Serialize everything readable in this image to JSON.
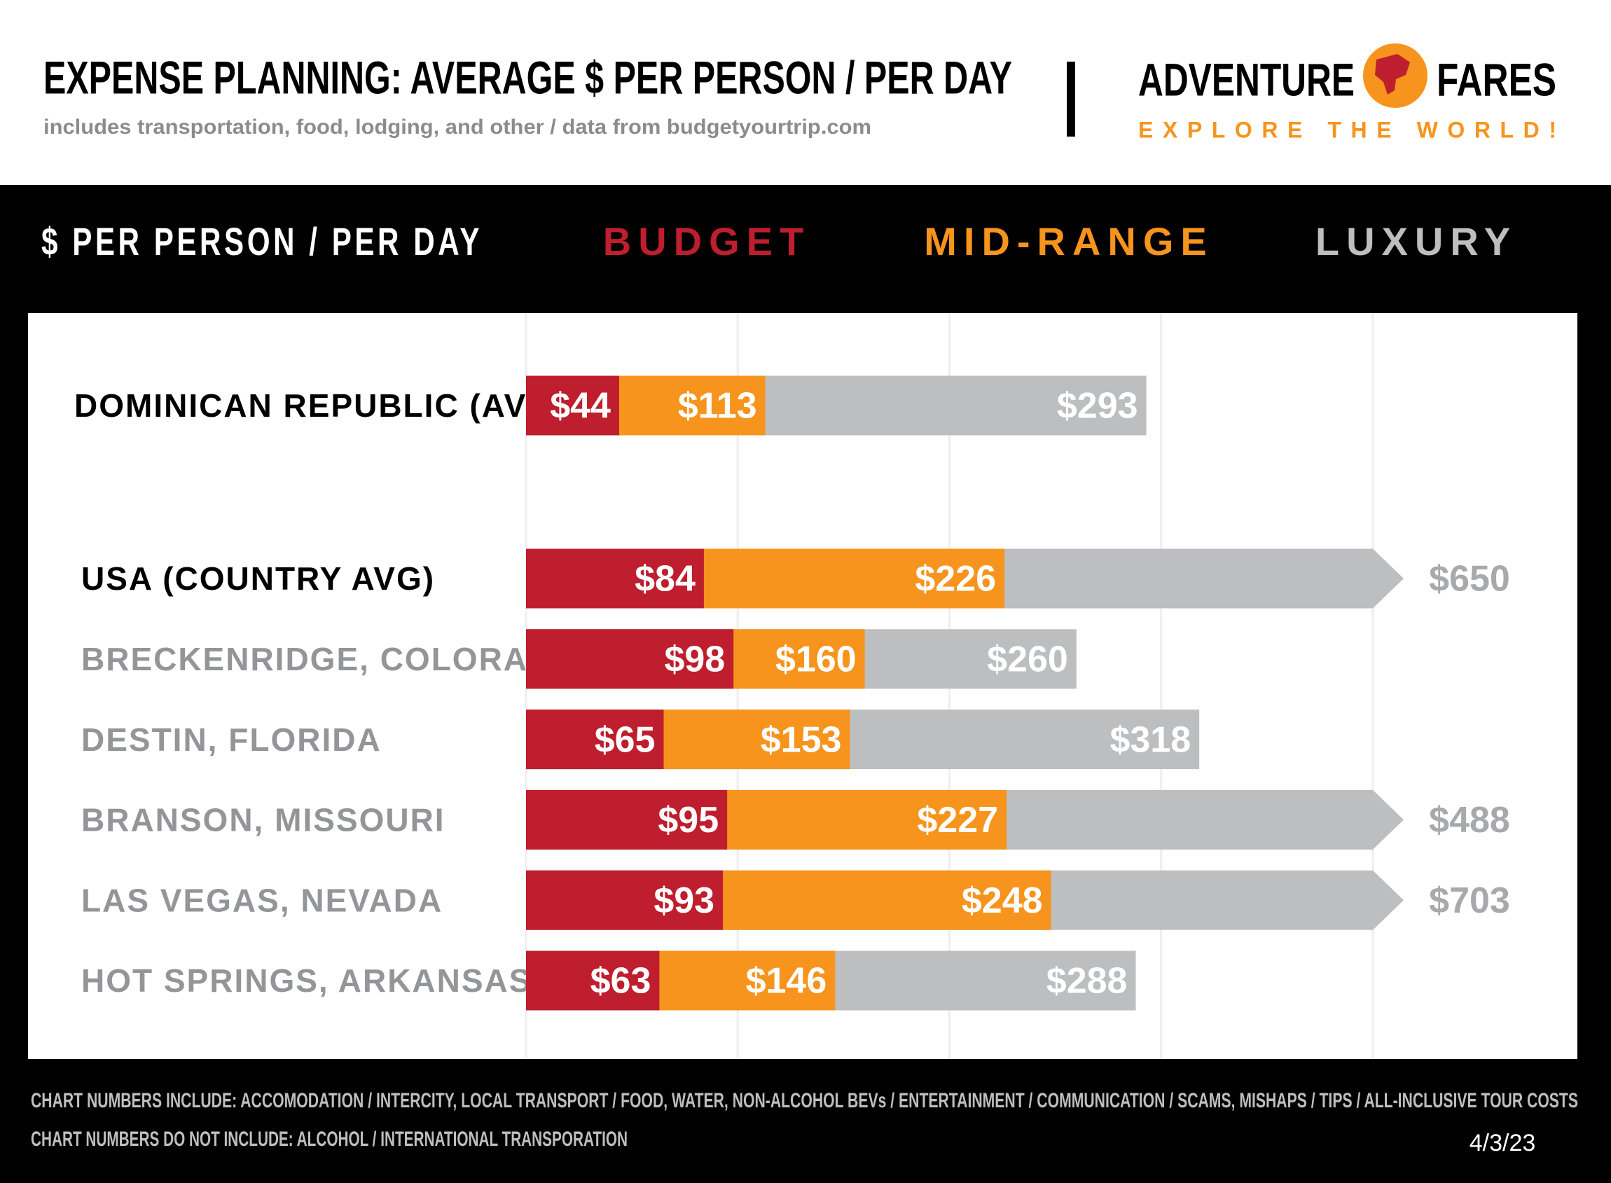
{
  "chart_data": {
    "type": "bar",
    "orientation": "horizontal",
    "title": "EXPENSE PLANNING: AVERAGE $ PER PERSON / PER DAY",
    "subtitle": "includes transportation, food, lodging, and other / data from budgetyourtrip.com",
    "brand": {
      "name_left": "ADVENTURE",
      "name_right": "FARES",
      "tagline": "EXPLORE THE WORLD!"
    },
    "x_label": "$ PER PERSON / PER DAY",
    "categories": [
      "DOMINICAN REPUBLIC (AVG)",
      "USA (COUNTRY AVG)",
      "BRECKENRIDGE, COLORADO",
      "DESTIN, FLORIDA",
      "BRANSON, MISSOURI",
      "LAS VEGAS, NEVADA",
      "HOT SPRINGS, ARKANSAS"
    ],
    "series": [
      {
        "name": "BUDGET",
        "color": "#be1e2d",
        "values": [
          44,
          84,
          98,
          65,
          95,
          93,
          63
        ],
        "value_labels": [
          "$44",
          "$84",
          "$98",
          "$65",
          "$95",
          "$93",
          "$63"
        ]
      },
      {
        "name": "MID-RANGE",
        "color": "#f7941d",
        "values": [
          113,
          226,
          160,
          153,
          227,
          248,
          146
        ],
        "value_labels": [
          "$113",
          "$226",
          "$160",
          "$153",
          "$227",
          "$248",
          "$146"
        ]
      },
      {
        "name": "LUXURY",
        "color": "#bcbec0",
        "values": [
          293,
          650,
          260,
          318,
          488,
          703,
          288
        ],
        "value_labels": [
          "$293",
          "$650",
          "$260",
          "$318",
          "$488",
          "$703",
          "$288"
        ]
      }
    ],
    "xlim": [
      0,
      400
    ],
    "xticks": [
      0,
      100,
      200,
      300,
      400
    ],
    "grid": true,
    "notes": [
      "CHART NUMBERS INCLUDE:  ACCOMODATION / INTERCITY, LOCAL TRANSPORT / FOOD, WATER, NON-ALCOHOL BEVs / ENTERTAINMENT / COMMUNICATION / SCAMS, MISHAPS / TIPS / ALL-INCLUSIVE TOUR COSTS",
      "CHART NUMBERS DO NOT INCLUDE:  ALCOHOL / INTERNATIONAL TRANSPORATION"
    ],
    "date": "4/3/23"
  }
}
